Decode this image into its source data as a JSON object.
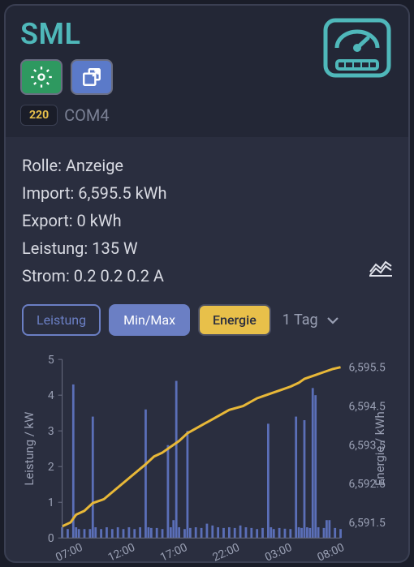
{
  "header": {
    "title": "SML",
    "badge": "220",
    "port": "COM4"
  },
  "info": {
    "rolle_label": "Rolle:",
    "rolle": "Anzeige",
    "import_label": "Import:",
    "import": "6,595.5 kWh",
    "export_label": "Export:",
    "export": "0 kWh",
    "leistung_label": "Leistung:",
    "leistung": "135 W",
    "strom_label": "Strom:",
    "strom": "0.2 0.2 0.2 A"
  },
  "tabs": {
    "leistung": "Leistung",
    "minmax": "Min/Max",
    "energie": "Energie",
    "range": "1 Tag"
  },
  "chart": {
    "type": "combo-bar-line",
    "left_label": "Leistung / kW",
    "right_label": "Energie / kWh",
    "left_ylim": [
      0,
      5
    ],
    "left_ticks": [
      0,
      1,
      2,
      3,
      4,
      5
    ],
    "right_ticks": [
      "6,591.5",
      "6,592.5",
      "6,593.5",
      "6,594.5",
      "6,595.5"
    ],
    "x_ticks": [
      "07:00",
      "12:00",
      "17:00",
      "22:00",
      "03:00",
      "08:00"
    ],
    "background_color": "#2a2e3f",
    "grid_color": "#6a6e82",
    "bar_color": "#5b6fb8",
    "line_color": "#e8b838",
    "line_width": 3,
    "bars": [
      [
        0.0,
        0.3
      ],
      [
        0.02,
        0.25
      ],
      [
        0.04,
        4.3
      ],
      [
        0.05,
        0.3
      ],
      [
        0.06,
        0.25
      ],
      [
        0.08,
        0.25
      ],
      [
        0.1,
        0.25
      ],
      [
        0.11,
        3.4
      ],
      [
        0.12,
        0.3
      ],
      [
        0.14,
        0.25
      ],
      [
        0.16,
        0.3
      ],
      [
        0.18,
        0.25
      ],
      [
        0.2,
        0.3
      ],
      [
        0.22,
        0.25
      ],
      [
        0.24,
        0.3
      ],
      [
        0.26,
        0.25
      ],
      [
        0.28,
        0.3
      ],
      [
        0.3,
        3.6
      ],
      [
        0.31,
        0.3
      ],
      [
        0.32,
        0.28
      ],
      [
        0.34,
        0.28
      ],
      [
        0.36,
        0.25
      ],
      [
        0.38,
        2.6
      ],
      [
        0.39,
        0.3
      ],
      [
        0.4,
        0.5
      ],
      [
        0.41,
        4.4
      ],
      [
        0.42,
        0.3
      ],
      [
        0.44,
        0.25
      ],
      [
        0.45,
        3.0
      ],
      [
        0.46,
        0.28
      ],
      [
        0.48,
        0.3
      ],
      [
        0.5,
        0.28
      ],
      [
        0.52,
        0.4
      ],
      [
        0.54,
        0.35
      ],
      [
        0.56,
        0.3
      ],
      [
        0.58,
        0.28
      ],
      [
        0.6,
        0.3
      ],
      [
        0.62,
        0.28
      ],
      [
        0.64,
        0.35
      ],
      [
        0.66,
        0.3
      ],
      [
        0.68,
        0.28
      ],
      [
        0.7,
        0.25
      ],
      [
        0.72,
        0.28
      ],
      [
        0.74,
        3.2
      ],
      [
        0.75,
        0.3
      ],
      [
        0.76,
        0.25
      ],
      [
        0.78,
        0.28
      ],
      [
        0.8,
        0.26
      ],
      [
        0.82,
        0.25
      ],
      [
        0.84,
        3.4
      ],
      [
        0.85,
        0.3
      ],
      [
        0.86,
        0.28
      ],
      [
        0.87,
        3.3
      ],
      [
        0.88,
        0.3
      ],
      [
        0.89,
        0.28
      ],
      [
        0.9,
        4.2
      ],
      [
        0.91,
        4.0
      ],
      [
        0.92,
        0.3
      ],
      [
        0.94,
        0.28
      ],
      [
        0.95,
        0.5
      ],
      [
        0.96,
        0.5
      ],
      [
        0.98,
        0.28
      ],
      [
        1.0,
        0.25
      ]
    ],
    "line": [
      [
        0.0,
        6591.4
      ],
      [
        0.03,
        6591.5
      ],
      [
        0.05,
        6591.7
      ],
      [
        0.08,
        6591.8
      ],
      [
        0.11,
        6592.0
      ],
      [
        0.15,
        6592.1
      ],
      [
        0.2,
        6592.4
      ],
      [
        0.25,
        6592.7
      ],
      [
        0.3,
        6593.0
      ],
      [
        0.33,
        6593.2
      ],
      [
        0.36,
        6593.3
      ],
      [
        0.4,
        6593.5
      ],
      [
        0.42,
        6593.6
      ],
      [
        0.45,
        6593.8
      ],
      [
        0.5,
        6594.0
      ],
      [
        0.55,
        6594.2
      ],
      [
        0.6,
        6594.4
      ],
      [
        0.65,
        6594.5
      ],
      [
        0.7,
        6594.7
      ],
      [
        0.74,
        6594.8
      ],
      [
        0.78,
        6594.9
      ],
      [
        0.82,
        6595.0
      ],
      [
        0.85,
        6595.1
      ],
      [
        0.87,
        6595.2
      ],
      [
        0.89,
        6595.25
      ],
      [
        0.91,
        6595.3
      ],
      [
        0.93,
        6595.35
      ],
      [
        0.95,
        6595.4
      ],
      [
        0.97,
        6595.45
      ],
      [
        1.0,
        6595.5
      ]
    ],
    "right_ylim": [
      6591.1,
      6595.7
    ]
  },
  "colors": {
    "accent": "#4fb8ba",
    "green": "#2e9960",
    "blue": "#5b7ac9",
    "yellow": "#e8c04a"
  }
}
